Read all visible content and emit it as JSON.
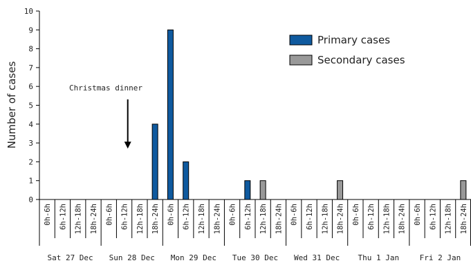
{
  "chart_data": {
    "type": "bar",
    "ylabel": "Number of cases",
    "ylim": [
      0,
      10
    ],
    "yticks": [
      "0",
      "1",
      "2",
      "3",
      "4",
      "5",
      "6",
      "7",
      "8",
      "9",
      "10"
    ],
    "slots": [
      "0h-6h",
      "6h-12h",
      "12h-18h",
      "18h-24h"
    ],
    "days": [
      "Sat 27 Dec",
      "Sun 28 Dec",
      "Mon 29 Dec",
      "Tue 30 Dec",
      "Wed 31 Dec",
      "Thu 1 Jan",
      "Fri 2 Jan"
    ],
    "series": [
      {
        "name": "Primary cases",
        "color": "#0f5a9f",
        "values": [
          0,
          0,
          0,
          0,
          0,
          0,
          0,
          4,
          9,
          2,
          0,
          0,
          0,
          1,
          0,
          0,
          0,
          0,
          0,
          0,
          0,
          0,
          0,
          0,
          0,
          0,
          0,
          0
        ]
      },
      {
        "name": "Secondary cases",
        "color": "#999999",
        "values": [
          0,
          0,
          0,
          0,
          0,
          0,
          0,
          0,
          0,
          0,
          0,
          0,
          0,
          0,
          1,
          0,
          0,
          0,
          0,
          1,
          0,
          0,
          0,
          0,
          0,
          0,
          0,
          1
        ]
      }
    ],
    "annotation": {
      "text": "Christmas dinner",
      "target_day_index": 1,
      "arrow_to_y": 2.7
    },
    "legend": {
      "placement": "top-right"
    },
    "grid": false
  }
}
